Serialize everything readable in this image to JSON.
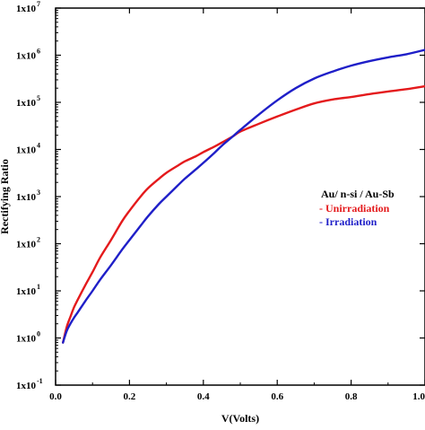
{
  "chart_data": {
    "type": "line",
    "xlabel": "V(Volts)",
    "ylabel": "Rectifying Ratio",
    "xlim": [
      0,
      1.0
    ],
    "ylim": [
      0.1,
      10000000
    ],
    "y_scale": "log",
    "grid": false,
    "x_ticks": [
      0,
      0.2,
      0.4,
      0.6,
      0.8,
      1.0
    ],
    "x_tick_labels": [
      "0.0",
      "0.2",
      "0.4",
      "0.6",
      "0.8",
      "1.0"
    ],
    "y_ticks": [
      {
        "base": "1x10",
        "exp": "-1",
        "value": 0.1
      },
      {
        "base": "1x10",
        "exp": "0",
        "value": 1
      },
      {
        "base": "1x10",
        "exp": "1",
        "value": 10
      },
      {
        "base": "1x10",
        "exp": "2",
        "value": 100
      },
      {
        "base": "1x10",
        "exp": "3",
        "value": 1000
      },
      {
        "base": "1x10",
        "exp": "4",
        "value": 10000
      },
      {
        "base": "1x10",
        "exp": "5",
        "value": 100000
      },
      {
        "base": "1x10",
        "exp": "6",
        "value": 1000000
      },
      {
        "base": "1x10",
        "exp": "7",
        "value": 10000000
      }
    ],
    "legend": {
      "title": "Au/ n-si / Au-Sb",
      "placement": "right"
    },
    "series": [
      {
        "name": "- Unirradiation",
        "color": "#e41a1c",
        "x": [
          0.02,
          0.03,
          0.04,
          0.05,
          0.06,
          0.08,
          0.1,
          0.12,
          0.15,
          0.18,
          0.2,
          0.23,
          0.25,
          0.28,
          0.3,
          0.33,
          0.35,
          0.38,
          0.4,
          0.43,
          0.45,
          0.48,
          0.5,
          0.55,
          0.6,
          0.65,
          0.7,
          0.75,
          0.8,
          0.85,
          0.9,
          0.95,
          1.0
        ],
        "y": [
          0.8,
          1.7,
          2.8,
          4.5,
          6.5,
          13,
          25,
          50,
          120,
          300,
          500,
          1000,
          1500,
          2400,
          3200,
          4500,
          5600,
          7200,
          8800,
          11500,
          14000,
          19000,
          24000,
          35000,
          50000,
          70000,
          95000,
          115000,
          130000,
          150000,
          170000,
          190000,
          220000
        ]
      },
      {
        "name": "- Irradiation",
        "color": "#1f1fc8",
        "x": [
          0.02,
          0.03,
          0.04,
          0.05,
          0.06,
          0.08,
          0.1,
          0.12,
          0.15,
          0.18,
          0.2,
          0.23,
          0.25,
          0.28,
          0.3,
          0.33,
          0.35,
          0.38,
          0.4,
          0.43,
          0.45,
          0.48,
          0.5,
          0.55,
          0.6,
          0.65,
          0.7,
          0.75,
          0.8,
          0.85,
          0.9,
          0.95,
          1.0
        ],
        "y": [
          0.8,
          1.4,
          2.0,
          2.7,
          3.5,
          6.0,
          10,
          17,
          35,
          75,
          120,
          240,
          380,
          700,
          1000,
          1700,
          2400,
          3800,
          5200,
          8500,
          12000,
          19000,
          26000,
          55000,
          110000,
          200000,
          320000,
          450000,
          600000,
          750000,
          900000,
          1050000,
          1300000
        ]
      }
    ]
  }
}
